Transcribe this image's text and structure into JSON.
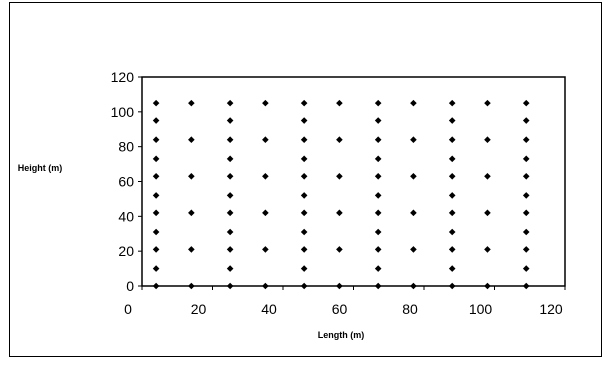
{
  "chart_data": {
    "type": "scatter",
    "title": "",
    "xlabel": "Length (m)",
    "ylabel": "Height (m)",
    "xlim": [
      0,
      120
    ],
    "ylim": [
      0,
      120
    ],
    "x_ticks": [
      0,
      20,
      40,
      60,
      80,
      100,
      120
    ],
    "y_ticks": [
      0,
      20,
      40,
      60,
      80,
      100,
      120
    ],
    "grid": false,
    "legend": "none",
    "marker_color": "#000000",
    "marker": "diamond",
    "series": [
      {
        "points": [
          [
            4,
            0
          ],
          [
            4,
            10
          ],
          [
            4,
            21
          ],
          [
            4,
            31
          ],
          [
            4,
            42
          ],
          [
            4,
            52
          ],
          [
            4,
            63
          ],
          [
            4,
            73
          ],
          [
            4,
            84
          ],
          [
            4,
            95
          ],
          [
            4,
            105
          ],
          [
            14,
            0
          ],
          [
            14,
            21
          ],
          [
            14,
            42
          ],
          [
            14,
            63
          ],
          [
            14,
            84
          ],
          [
            14,
            105
          ],
          [
            25,
            0
          ],
          [
            25,
            10
          ],
          [
            25,
            21
          ],
          [
            25,
            31
          ],
          [
            25,
            42
          ],
          [
            25,
            52
          ],
          [
            25,
            63
          ],
          [
            25,
            73
          ],
          [
            25,
            84
          ],
          [
            25,
            95
          ],
          [
            25,
            105
          ],
          [
            35,
            0
          ],
          [
            35,
            21
          ],
          [
            35,
            42
          ],
          [
            35,
            63
          ],
          [
            35,
            84
          ],
          [
            35,
            105
          ],
          [
            46,
            0
          ],
          [
            46,
            10
          ],
          [
            46,
            21
          ],
          [
            46,
            31
          ],
          [
            46,
            42
          ],
          [
            46,
            52
          ],
          [
            46,
            63
          ],
          [
            46,
            73
          ],
          [
            46,
            84
          ],
          [
            46,
            95
          ],
          [
            46,
            105
          ],
          [
            56,
            0
          ],
          [
            56,
            21
          ],
          [
            56,
            42
          ],
          [
            56,
            63
          ],
          [
            56,
            84
          ],
          [
            56,
            105
          ],
          [
            67,
            0
          ],
          [
            67,
            10
          ],
          [
            67,
            21
          ],
          [
            67,
            31
          ],
          [
            67,
            42
          ],
          [
            67,
            52
          ],
          [
            67,
            63
          ],
          [
            67,
            73
          ],
          [
            67,
            84
          ],
          [
            67,
            95
          ],
          [
            67,
            105
          ],
          [
            77,
            0
          ],
          [
            77,
            21
          ],
          [
            77,
            42
          ],
          [
            77,
            63
          ],
          [
            77,
            84
          ],
          [
            77,
            105
          ],
          [
            88,
            0
          ],
          [
            88,
            10
          ],
          [
            88,
            21
          ],
          [
            88,
            31
          ],
          [
            88,
            42
          ],
          [
            88,
            52
          ],
          [
            88,
            63
          ],
          [
            88,
            73
          ],
          [
            88,
            84
          ],
          [
            88,
            95
          ],
          [
            88,
            105
          ],
          [
            98,
            0
          ],
          [
            98,
            21
          ],
          [
            98,
            42
          ],
          [
            98,
            63
          ],
          [
            98,
            84
          ],
          [
            98,
            105
          ],
          [
            109,
            0
          ],
          [
            109,
            10
          ],
          [
            109,
            21
          ],
          [
            109,
            31
          ],
          [
            109,
            42
          ],
          [
            109,
            52
          ],
          [
            109,
            63
          ],
          [
            109,
            73
          ],
          [
            109,
            84
          ],
          [
            109,
            95
          ],
          [
            109,
            105
          ]
        ]
      }
    ]
  }
}
